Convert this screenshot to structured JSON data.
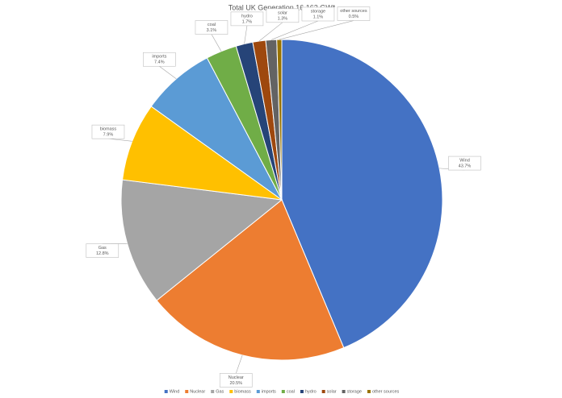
{
  "chart_data": {
    "type": "pie",
    "title": "Total UK Generation 16.162 GW*",
    "categories": [
      "Wind",
      "Nuclear",
      "Gas",
      "biomass",
      "imports",
      "coal",
      "hydro",
      "solar",
      "storage",
      "other sources"
    ],
    "values": [
      43.7,
      20.5,
      12.8,
      7.9,
      7.4,
      3.1,
      1.7,
      1.3,
      1.1,
      0.5
    ],
    "value_labels": [
      "43.7%",
      "20.5%",
      "12.8%",
      "7.9%",
      "7.4%",
      "3.1%",
      "1.7%",
      "1.3%",
      "1.1%",
      "0.5%"
    ],
    "colors": [
      "#4472c4",
      "#ed7d31",
      "#a5a5a5",
      "#ffc000",
      "#5b9bd5",
      "#70ad47",
      "#264478",
      "#9e480e",
      "#636363",
      "#997300"
    ],
    "legend": "bottom"
  }
}
